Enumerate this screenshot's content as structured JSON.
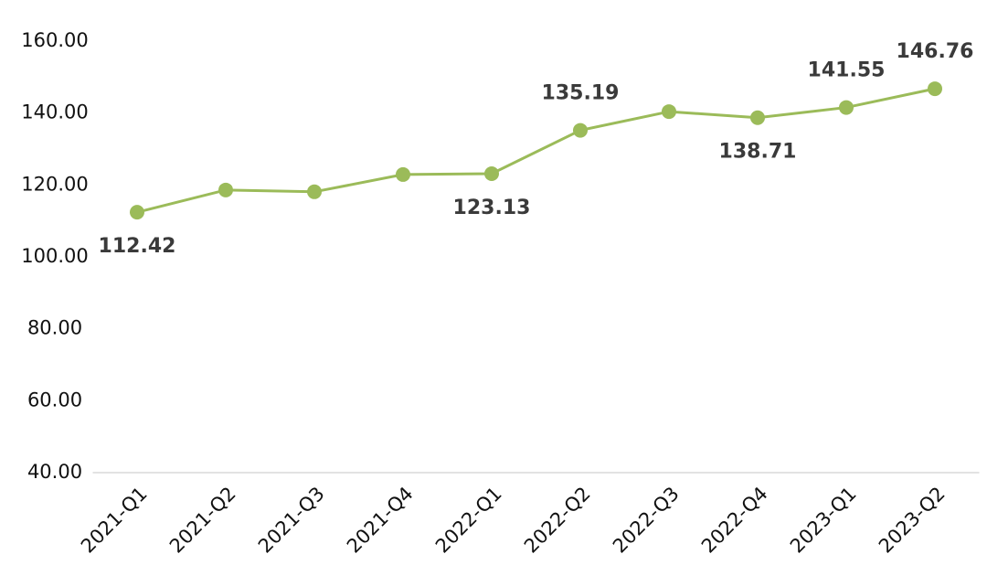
{
  "chart_data": {
    "type": "line",
    "categories": [
      "2021-Q1",
      "2021-Q2",
      "2021-Q3",
      "2021-Q4",
      "2022-Q1",
      "2022-Q2",
      "2022-Q3",
      "2022-Q4",
      "2023-Q1",
      "2023-Q2"
    ],
    "values": [
      112.42,
      118.6,
      118.1,
      122.9,
      123.13,
      135.19,
      140.4,
      138.71,
      141.55,
      146.76
    ],
    "value_labels": [
      "112.42",
      null,
      null,
      null,
      "123.13",
      "135.19",
      null,
      "138.71",
      "141.55",
      "146.76"
    ],
    "color": "#9bbb59",
    "ylim": [
      40,
      160
    ],
    "yticks": [
      {
        "value": 40,
        "label": "40.00"
      },
      {
        "value": 60,
        "label": "60.00"
      },
      {
        "value": 80,
        "label": "80.00"
      },
      {
        "value": 100,
        "label": "100.00"
      },
      {
        "value": 120,
        "label": "120.00"
      },
      {
        "value": 140,
        "label": "140.00"
      },
      {
        "value": 160,
        "label": "160.00"
      }
    ],
    "grid": false
  }
}
